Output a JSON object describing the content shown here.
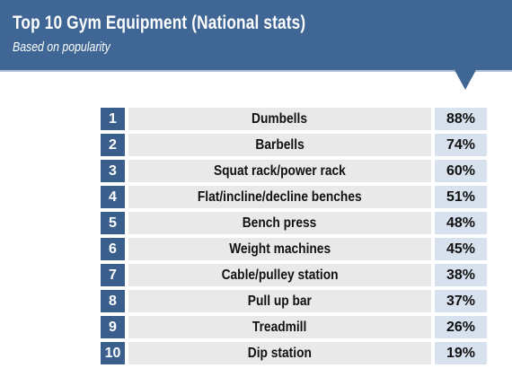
{
  "header": {
    "title": "Top 10 Gym Equipment (National stats)",
    "subtitle": "Based on popularity"
  },
  "colors": {
    "header_bg": "#3f6695",
    "rank_bg": "#3a5f8d",
    "name_bg": "#e9e9e9",
    "value_bg": "#d8e2ef"
  },
  "chart_data": {
    "type": "table",
    "title": "Top 10 Gym Equipment (National stats)",
    "subtitle": "Based on popularity",
    "columns": [
      "",
      "",
      ""
    ],
    "rows": [
      {
        "rank": "1",
        "name": "Dumbells",
        "value_label": "88%",
        "value": 88
      },
      {
        "rank": "2",
        "name": "Barbells",
        "value_label": "74%",
        "value": 74
      },
      {
        "rank": "3",
        "name": "Squat rack/power rack",
        "value_label": "60%",
        "value": 60
      },
      {
        "rank": "4",
        "name": "Flat/incline/decline benches",
        "value_label": "51%",
        "value": 51
      },
      {
        "rank": "5",
        "name": "Bench press",
        "value_label": "48%",
        "value": 48
      },
      {
        "rank": "6",
        "name": "Weight machines",
        "value_label": "45%",
        "value": 45
      },
      {
        "rank": "7",
        "name": "Cable/pulley station",
        "value_label": "38%",
        "value": 38
      },
      {
        "rank": "8",
        "name": "Pull up bar",
        "value_label": "37%",
        "value": 37
      },
      {
        "rank": "9",
        "name": "Treadmill",
        "value_label": "26%",
        "value": 26
      },
      {
        "rank": "10",
        "name": "Dip station",
        "value_label": "19%",
        "value": 19
      }
    ]
  }
}
